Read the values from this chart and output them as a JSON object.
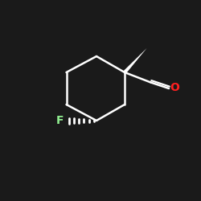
{
  "bg_color": "#1a1a1a",
  "line_color": "#ffffff",
  "F_color": "#90ee90",
  "O_color": "#ff2020",
  "figsize": [
    2.5,
    2.5
  ],
  "dpi": 100
}
